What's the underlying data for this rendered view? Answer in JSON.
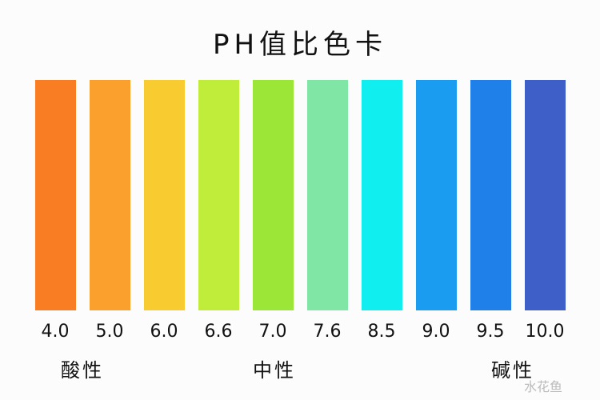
{
  "title": "PH值比色卡",
  "swatches": [
    {
      "ph": "4.0",
      "color": "#f97d22"
    },
    {
      "ph": "5.0",
      "color": "#fba02c"
    },
    {
      "ph": "6.0",
      "color": "#f8cc30"
    },
    {
      "ph": "6.6",
      "color": "#c0ec3a"
    },
    {
      "ph": "7.0",
      "color": "#9be636"
    },
    {
      "ph": "7.6",
      "color": "#80e6a6"
    },
    {
      "ph": "8.5",
      "color": "#10eef0"
    },
    {
      "ph": "9.0",
      "color": "#1a9cf0"
    },
    {
      "ph": "9.5",
      "color": "#1e80e8"
    },
    {
      "ph": "10.0",
      "color": "#3f5fc8"
    }
  ],
  "categories": {
    "acidic": "酸性",
    "neutral": "中性",
    "alkaline": "碱性"
  },
  "watermark": "水花鱼"
}
